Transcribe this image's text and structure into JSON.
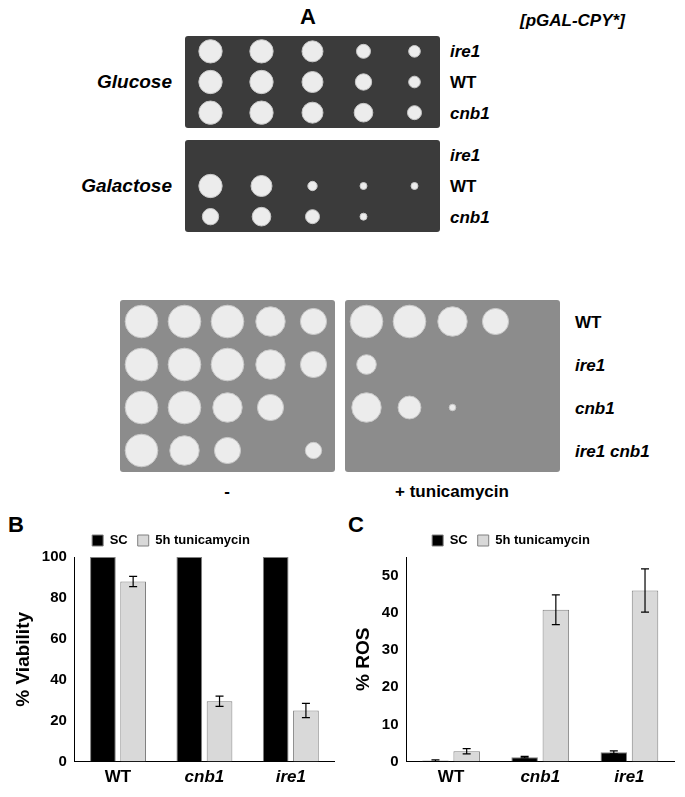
{
  "panel_a": {
    "label": "A",
    "plasmid": "[pGAL-CPY*]",
    "plates": [
      {
        "condition": "Glucose",
        "strains": [
          "ire1",
          "WT",
          "cnb1"
        ],
        "growth": [
          [
            1,
            1,
            0.9,
            0.6,
            0.5
          ],
          [
            1,
            1,
            0.9,
            0.7,
            0.5
          ],
          [
            1,
            1,
            0.9,
            0.8,
            0.6
          ]
        ]
      },
      {
        "condition": "Galactose",
        "strains": [
          "ire1",
          "WT",
          "cnb1"
        ],
        "growth": [
          [
            0,
            0,
            0,
            0,
            0
          ],
          [
            1,
            0.9,
            0.4,
            0.3,
            0.3
          ],
          [
            0.7,
            0.8,
            0.6,
            0.3,
            0
          ]
        ]
      }
    ],
    "tunicamycin_strains": [
      "WT",
      "ire1",
      "cnb1",
      "ire1 cnb1"
    ],
    "tunicamycin_plates": [
      {
        "condition": "-",
        "growth": [
          [
            1,
            1,
            1,
            0.9,
            0.8
          ],
          [
            1,
            1,
            1,
            0.9,
            0.8
          ],
          [
            1,
            1,
            0.9,
            0.8,
            0
          ],
          [
            1,
            0.9,
            0.8,
            0,
            0.5
          ]
        ]
      },
      {
        "condition": "+ tunicamycin",
        "growth": [
          [
            1,
            1,
            0.9,
            0.8,
            0
          ],
          [
            0.6,
            0,
            0,
            0,
            0
          ],
          [
            0.9,
            0.7,
            0.2,
            0,
            0
          ],
          [
            0,
            0,
            0,
            0,
            0
          ]
        ]
      }
    ]
  },
  "panel_labels": [
    "B",
    "C"
  ],
  "chart_data": [
    {
      "type": "bar",
      "y_label": "% Viability",
      "categories": [
        "WT",
        "cnb1",
        "ire1"
      ],
      "series": [
        {
          "name": "SC",
          "color": "#000000",
          "values": [
            100,
            100,
            100
          ]
        },
        {
          "name": "5h tunicamycin",
          "color": "#d9d9d9",
          "values": [
            88,
            29.5,
            25
          ],
          "errors": [
            2.5,
            2.5,
            3.5
          ]
        }
      ],
      "ylim": [
        0,
        100
      ],
      "yticks": [
        0,
        20,
        40,
        60,
        80,
        100
      ],
      "grid": false,
      "legend": "top"
    },
    {
      "type": "bar",
      "y_label": "% ROS",
      "categories": [
        "WT",
        "cnb1",
        "ire1"
      ],
      "series": [
        {
          "name": "SC",
          "color": "#000000",
          "values": [
            0.3,
            1.2,
            2.5
          ],
          "errors": [
            0.2,
            0.2,
            0.4
          ]
        },
        {
          "name": "5h tunicamycin",
          "color": "#d9d9d9",
          "values": [
            2.8,
            40.8,
            46
          ],
          "errors": [
            0.7,
            4,
            5.8
          ]
        }
      ],
      "ylim": [
        0,
        55
      ],
      "yticks": [
        0,
        10,
        20,
        30,
        40,
        50
      ],
      "grid": false,
      "legend": "top"
    }
  ]
}
